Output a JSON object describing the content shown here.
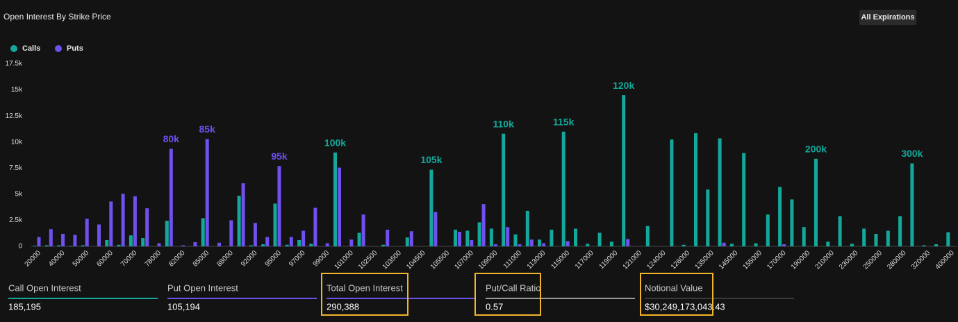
{
  "header": {
    "title": "Open Interest By Strike Price",
    "button": "All Expirations"
  },
  "chart_data": {
    "type": "bar",
    "categories": [
      "20000",
      null,
      "40000",
      null,
      "50000",
      null,
      "60000",
      null,
      "70000",
      null,
      "78000",
      null,
      "82000",
      null,
      "85000",
      null,
      "88000",
      null,
      "92000",
      null,
      "95000",
      null,
      "97000",
      null,
      "99000",
      null,
      "101000",
      null,
      "102500",
      null,
      "103500",
      null,
      "104500",
      null,
      "105500",
      null,
      "107000",
      null,
      "109000",
      null,
      "111000",
      null,
      "113000",
      null,
      "115000",
      null,
      "117000",
      null,
      "119000",
      null,
      "121000",
      null,
      "124000",
      null,
      "126000",
      null,
      "135000",
      null,
      "145000",
      null,
      "155000",
      null,
      "170000",
      null,
      "190000",
      null,
      "210000",
      null,
      "230000",
      null,
      "250000",
      null,
      "280000",
      null,
      "320000",
      null,
      "400000"
    ],
    "series": [
      {
        "name": "Calls",
        "color": "#14a89b",
        "values": [
          50,
          100,
          100,
          50,
          100,
          0,
          600,
          150,
          1050,
          800,
          0,
          2450,
          0,
          0,
          2700,
          0,
          0,
          4850,
          100,
          200,
          4100,
          150,
          600,
          250,
          0,
          9000,
          0,
          1300,
          0,
          150,
          0,
          850,
          0,
          7350,
          0,
          1600,
          1500,
          2300,
          1700,
          10800,
          1150,
          3400,
          650,
          1600,
          11000,
          1700,
          250,
          1300,
          450,
          14500,
          0,
          1950,
          0,
          10250,
          150,
          10850,
          5450,
          10350,
          250,
          8950,
          300,
          3050,
          5700,
          4500,
          1850,
          8400,
          450,
          2900,
          250,
          1700,
          1200,
          1500,
          2900,
          7950,
          100,
          200,
          1350
        ]
      },
      {
        "name": "Puts",
        "color": "#7050ee",
        "values": [
          900,
          1650,
          1200,
          1100,
          2650,
          2100,
          4300,
          5050,
          4800,
          3650,
          300,
          9350,
          100,
          400,
          10300,
          350,
          2500,
          6050,
          2250,
          900,
          7700,
          900,
          1500,
          3700,
          300,
          7550,
          650,
          3050,
          0,
          1600,
          0,
          1450,
          0,
          3300,
          0,
          1400,
          600,
          4050,
          200,
          1850,
          200,
          650,
          300,
          0,
          500,
          0,
          0,
          0,
          0,
          700,
          0,
          0,
          0,
          0,
          0,
          0,
          0,
          350,
          0,
          0,
          0,
          0,
          200,
          0,
          0,
          0,
          0,
          0,
          0,
          0,
          0,
          0,
          0,
          0,
          0,
          0,
          0
        ]
      }
    ],
    "annotations": [
      {
        "text": "80k",
        "series": 1,
        "index": 11
      },
      {
        "text": "85k",
        "series": 1,
        "index": 14
      },
      {
        "text": "95k",
        "series": 1,
        "index": 20
      },
      {
        "text": "100k",
        "series": 0,
        "index": 25
      },
      {
        "text": "105k",
        "series": 0,
        "index": 33
      },
      {
        "text": "110k",
        "series": 0,
        "index": 39
      },
      {
        "text": "115k",
        "series": 0,
        "index": 44
      },
      {
        "text": "120k",
        "series": 0,
        "index": 49
      },
      {
        "text": "200k",
        "series": 0,
        "index": 65
      },
      {
        "text": "300k",
        "series": 0,
        "index": 73
      }
    ],
    "ylim": [
      0,
      17500
    ],
    "yticks": [
      0,
      {
        "value": 2500,
        "label": "2.5k"
      },
      {
        "value": 5000,
        "label": "5k"
      },
      {
        "value": 7500,
        "label": "7.5k"
      },
      {
        "value": 10000,
        "label": "10k"
      },
      {
        "value": 12500,
        "label": "12.5k"
      },
      {
        "value": 15000,
        "label": "15k"
      },
      {
        "value": 17500,
        "label": "17.5k"
      }
    ],
    "legend": "top-left"
  },
  "stats": [
    {
      "label": "Call Open Interest",
      "value": "185,195"
    },
    {
      "label": "Put Open Interest",
      "value": "105,194"
    },
    {
      "label": "Total Open Interest",
      "value": "290,388"
    },
    {
      "label": "Put/Call Ratio",
      "value": "0.57"
    },
    {
      "label": "Notional Value",
      "value": "$30,249,173,043.43"
    }
  ]
}
